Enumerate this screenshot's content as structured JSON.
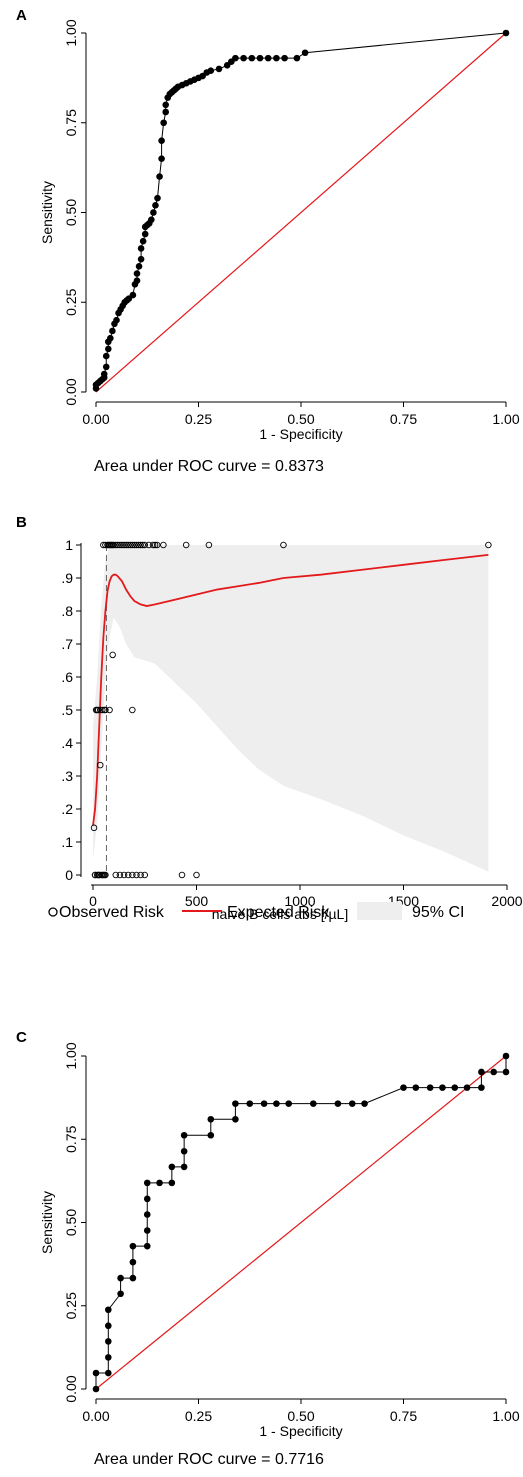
{
  "colors": {
    "curve": "#000000",
    "reference": "#e31a1c",
    "ci_fill": "#eeeeee",
    "axis": "#000000"
  },
  "chart_data": [
    {
      "panel": "A",
      "type": "line",
      "title": "",
      "xlabel": "1 - Specificity",
      "ylabel": "Sensitivity",
      "xlim": [
        0,
        1
      ],
      "ylim": [
        0,
        1
      ],
      "xticks": [
        "0.00",
        "0.25",
        "0.50",
        "0.75",
        "1.00"
      ],
      "yticks": [
        "0.00",
        "0.25",
        "0.50",
        "0.75",
        "1.00"
      ],
      "grid": false,
      "annotation": "Area under ROC curve = 0.8373",
      "series": [
        {
          "role": "roc",
          "x": [
            0.0,
            0.0,
            0.005,
            0.01,
            0.015,
            0.02,
            0.02,
            0.025,
            0.025,
            0.03,
            0.03,
            0.035,
            0.04,
            0.045,
            0.05,
            0.055,
            0.06,
            0.065,
            0.07,
            0.075,
            0.08,
            0.09,
            0.095,
            0.1,
            0.1,
            0.105,
            0.11,
            0.11,
            0.115,
            0.12,
            0.12,
            0.125,
            0.13,
            0.135,
            0.14,
            0.145,
            0.15,
            0.155,
            0.16,
            0.16,
            0.165,
            0.17,
            0.17,
            0.175,
            0.18,
            0.185,
            0.19,
            0.195,
            0.2,
            0.21,
            0.22,
            0.23,
            0.24,
            0.25,
            0.26,
            0.27,
            0.28,
            0.3,
            0.32,
            0.33,
            0.34,
            0.36,
            0.38,
            0.4,
            0.42,
            0.44,
            0.46,
            0.49,
            0.51,
            1.0
          ],
          "y": [
            0.01,
            0.02,
            0.025,
            0.03,
            0.035,
            0.04,
            0.05,
            0.07,
            0.1,
            0.12,
            0.14,
            0.15,
            0.17,
            0.19,
            0.2,
            0.22,
            0.23,
            0.24,
            0.25,
            0.255,
            0.26,
            0.27,
            0.3,
            0.31,
            0.33,
            0.35,
            0.37,
            0.4,
            0.42,
            0.44,
            0.46,
            0.465,
            0.47,
            0.48,
            0.5,
            0.52,
            0.54,
            0.6,
            0.65,
            0.7,
            0.75,
            0.78,
            0.8,
            0.82,
            0.83,
            0.835,
            0.84,
            0.845,
            0.85,
            0.855,
            0.86,
            0.865,
            0.87,
            0.875,
            0.88,
            0.89,
            0.895,
            0.9,
            0.91,
            0.92,
            0.93,
            0.93,
            0.93,
            0.93,
            0.93,
            0.93,
            0.93,
            0.93,
            0.945,
            1.0
          ]
        },
        {
          "role": "reference",
          "x": [
            0,
            1
          ],
          "y": [
            0,
            1
          ]
        }
      ]
    },
    {
      "panel": "B",
      "type": "scatter",
      "title": "",
      "xlabel": "naive B cells abs [/µL]",
      "ylabel": "",
      "xlim": [
        0,
        2000
      ],
      "ylim": [
        0,
        1
      ],
      "xticks": [
        0,
        500,
        1000,
        1500,
        2000
      ],
      "yticks": [
        "0",
        ".1",
        ".2",
        ".3",
        ".4",
        ".5",
        ".6",
        ".7",
        ".8",
        ".9",
        "1"
      ],
      "cutoff_x": 65,
      "grid": false,
      "legend_position": "bottom",
      "legend": [
        "Observed Risk",
        "Expected Risk",
        "95% CI"
      ],
      "observed": {
        "x": [
          5,
          15,
          20,
          25,
          35,
          45,
          55,
          60,
          10,
          25,
          30,
          45,
          55,
          80,
          190,
          35,
          95,
          50,
          60,
          70,
          75,
          80,
          85,
          90,
          95,
          100,
          110,
          120,
          130,
          140,
          150,
          160,
          170,
          180,
          190,
          200,
          210,
          220,
          230,
          240,
          250,
          270,
          290,
          300,
          310,
          340,
          450,
          560,
          920,
          1910,
          10,
          20,
          30,
          40,
          50,
          60,
          110,
          130,
          150,
          170,
          190,
          210,
          230,
          250,
          430,
          500
        ],
        "y": [
          0.143,
          0.5,
          0.5,
          0.5,
          0.5,
          0.5,
          0.5,
          0.5,
          0,
          0,
          0,
          0,
          0,
          0.5,
          0.5,
          0.333,
          0.667,
          1,
          1,
          1,
          1,
          1,
          1,
          1,
          1,
          1,
          1,
          1,
          1,
          1,
          1,
          1,
          1,
          1,
          1,
          1,
          1,
          1,
          1,
          1,
          1,
          1,
          1,
          1,
          1,
          1,
          1,
          1,
          1,
          1,
          0,
          0,
          0,
          0,
          0,
          0,
          0,
          0,
          0,
          0,
          0,
          0,
          0,
          0,
          0,
          0
        ]
      },
      "expected": {
        "x": [
          0,
          10,
          20,
          30,
          40,
          50,
          60,
          70,
          80,
          90,
          100,
          110,
          120,
          140,
          160,
          180,
          200,
          230,
          260,
          300,
          400,
          500,
          600,
          700,
          800,
          920,
          1100,
          1300,
          1500,
          1700,
          1910
        ],
        "y": [
          0.15,
          0.2,
          0.3,
          0.45,
          0.6,
          0.72,
          0.8,
          0.86,
          0.89,
          0.905,
          0.91,
          0.91,
          0.905,
          0.89,
          0.865,
          0.845,
          0.83,
          0.82,
          0.815,
          0.82,
          0.835,
          0.85,
          0.865,
          0.875,
          0.885,
          0.9,
          0.91,
          0.925,
          0.94,
          0.955,
          0.97
        ]
      },
      "ci": {
        "x": [
          0,
          20,
          40,
          60,
          80,
          100,
          130,
          160,
          200,
          250,
          300,
          400,
          500,
          600,
          700,
          800,
          920,
          1100,
          1300,
          1500,
          1700,
          1910
        ],
        "lower": [
          0.05,
          0.15,
          0.38,
          0.6,
          0.72,
          0.78,
          0.75,
          0.7,
          0.66,
          0.65,
          0.64,
          0.58,
          0.52,
          0.45,
          0.38,
          0.32,
          0.27,
          0.23,
          0.18,
          0.12,
          0.07,
          0.01
        ],
        "upper": [
          0.45,
          0.6,
          0.82,
          0.95,
          1,
          1,
          1,
          1,
          1,
          1,
          1,
          1,
          1,
          1,
          1,
          1,
          1,
          1,
          1,
          1,
          1,
          1
        ]
      }
    },
    {
      "panel": "C",
      "type": "line",
      "title": "",
      "xlabel": "1 - Specificity",
      "ylabel": "Sensitivity",
      "xlim": [
        0,
        1
      ],
      "ylim": [
        0,
        1
      ],
      "xticks": [
        "0.00",
        "0.25",
        "0.50",
        "0.75",
        "1.00"
      ],
      "yticks": [
        "0.00",
        "0.25",
        "0.50",
        "0.75",
        "1.00"
      ],
      "grid": false,
      "annotation": "Area under ROC curve = 0.7716",
      "series": [
        {
          "role": "roc",
          "x": [
            0,
            0,
            0.03,
            0.03,
            0.03,
            0.03,
            0.03,
            0.06,
            0.06,
            0.09,
            0.09,
            0.09,
            0.125,
            0.125,
            0.125,
            0.125,
            0.125,
            0.155,
            0.185,
            0.185,
            0.215,
            0.215,
            0.215,
            0.28,
            0.28,
            0.34,
            0.34,
            0.375,
            0.41,
            0.44,
            0.47,
            0.53,
            0.59,
            0.625,
            0.655,
            0.75,
            0.78,
            0.815,
            0.845,
            0.875,
            0.905,
            0.94,
            0.94,
            0.97,
            1.0,
            1.0
          ],
          "y": [
            0,
            0.048,
            0.048,
            0.095,
            0.143,
            0.19,
            0.238,
            0.286,
            0.333,
            0.333,
            0.381,
            0.429,
            0.429,
            0.476,
            0.524,
            0.571,
            0.619,
            0.619,
            0.619,
            0.667,
            0.667,
            0.714,
            0.762,
            0.762,
            0.81,
            0.81,
            0.857,
            0.857,
            0.857,
            0.857,
            0.857,
            0.857,
            0.857,
            0.857,
            0.857,
            0.905,
            0.905,
            0.905,
            0.905,
            0.905,
            0.905,
            0.905,
            0.952,
            0.952,
            0.952,
            1.0
          ]
        },
        {
          "role": "reference",
          "x": [
            0,
            1
          ],
          "y": [
            0,
            1
          ]
        }
      ]
    }
  ]
}
